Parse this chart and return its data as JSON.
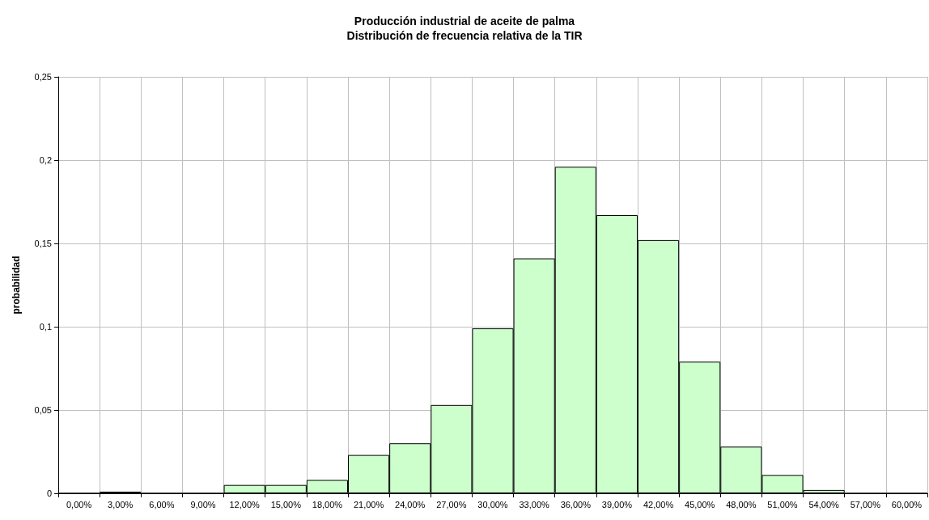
{
  "chart_data": {
    "type": "bar",
    "title": "Producción industrial de aceite de palma",
    "subtitle": "Distribución de frecuencia relativa de la TIR",
    "ylabel": "probabilidad",
    "categories": [
      "0,00%",
      "3,00%",
      "6,00%",
      "9,00%",
      "12,00%",
      "15,00%",
      "18,00%",
      "21,00%",
      "24,00%",
      "27,00%",
      "30,00%",
      "33,00%",
      "36,00%",
      "39,00%",
      "42,00%",
      "45,00%",
      "48,00%",
      "51,00%",
      "54,00%",
      "57,00%",
      "60,00%"
    ],
    "values": [
      0,
      0.001,
      0,
      0,
      0.005,
      0.005,
      0.008,
      0.023,
      0.03,
      0.053,
      0.099,
      0.141,
      0.196,
      0.167,
      0.152,
      0.079,
      0.028,
      0.011,
      0.002,
      0,
      0
    ],
    "color": "#ccffcc",
    "ylim": [
      0,
      0.25
    ],
    "yticks": [
      {
        "value": 0,
        "label": "0"
      },
      {
        "value": 0.05,
        "label": "0,05"
      },
      {
        "value": 0.1,
        "label": "0,1"
      },
      {
        "value": 0.15,
        "label": "0,15"
      },
      {
        "value": 0.2,
        "label": "0,2"
      },
      {
        "value": 0.25,
        "label": "0,25"
      }
    ],
    "grid": true
  }
}
